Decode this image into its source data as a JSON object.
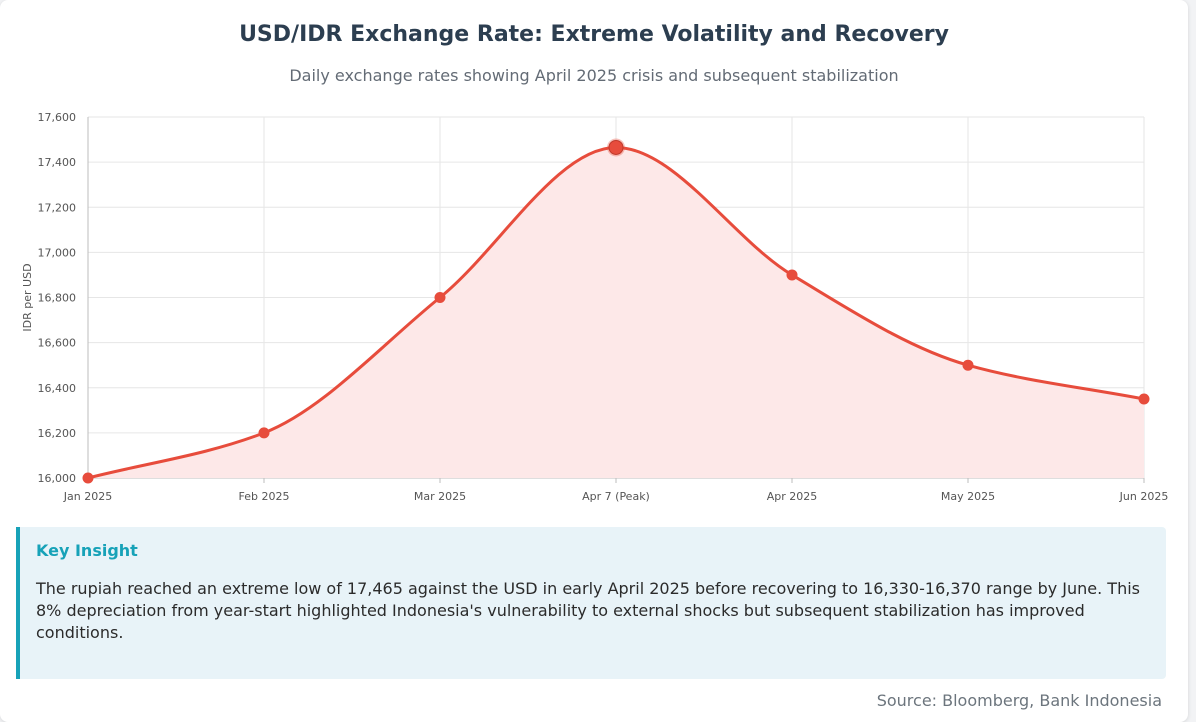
{
  "header": {
    "title": "USD/IDR Exchange Rate: Extreme Volatility and Recovery",
    "subtitle": "Daily exchange rates showing April 2025 crisis and subsequent stabilization"
  },
  "chart_data": {
    "type": "area",
    "title": "USD/IDR Exchange Rate: Extreme Volatility and Recovery",
    "subtitle": "Daily exchange rates showing April 2025 crisis and subsequent stabilization",
    "xlabel": "",
    "ylabel": "IDR per USD",
    "categories": [
      "Jan 2025",
      "Feb 2025",
      "Mar 2025",
      "Apr 7 (Peak)",
      "Apr 2025",
      "May 2025",
      "Jun 2025"
    ],
    "series": [
      {
        "values": [
          16000,
          16200,
          16800,
          17465,
          16900,
          16500,
          16350
        ]
      }
    ],
    "highlight_index": 3,
    "ylim": [
      16000,
      17600
    ],
    "yticks": [
      16000,
      16200,
      16400,
      16600,
      16800,
      17000,
      17200,
      17400,
      17600
    ],
    "ytick_labels": [
      "16,000",
      "16,200",
      "16,400",
      "16,600",
      "16,800",
      "17,000",
      "17,200",
      "17,400",
      "17,600"
    ],
    "grid": true,
    "colors": {
      "line": "#e74c3c",
      "fill": "#fde8e8",
      "point": "#e74c3c",
      "highlight": "#e74c3c",
      "grid": "#e6e6e6",
      "axis": "#bdbdbd"
    }
  },
  "insight": {
    "heading": "Key Insight",
    "text": "The rupiah reached an extreme low of 17,465 against the USD in early April 2025 before recovering to 16,330-16,370 range by June. This 8% depreciation from year-start highlighted Indonesia's vulnerability to external shocks but subsequent stabilization has improved conditions."
  },
  "footer": {
    "source": "Source: Bloomberg, Bank Indonesia"
  }
}
